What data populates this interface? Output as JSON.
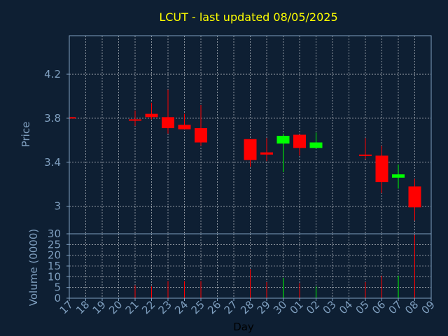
{
  "chart_data": {
    "type": "candlestick",
    "title": "LCUT - last updated 08/05/2025",
    "xlabel": "Day",
    "price_panel": {
      "ylabel": "Price",
      "ylim": [
        2.75,
        4.55
      ],
      "yticks": [
        3,
        3.4,
        3.8,
        4.2
      ],
      "ytick_labels": [
        "3",
        "3.4",
        "3.8",
        "4.2"
      ]
    },
    "volume_panel": {
      "ylabel": "Volume (0000)",
      "ylim": [
        0,
        30
      ],
      "yticks": [
        0,
        5,
        10,
        15,
        20,
        25,
        30
      ],
      "ytick_labels": [
        "0",
        "5",
        "10",
        "15",
        "20",
        "25",
        "30"
      ]
    },
    "x_tick_labels": [
      "17",
      "18",
      "19",
      "20",
      "21",
      "22",
      "23",
      "24",
      "25",
      "26",
      "27",
      "28",
      "29",
      "30",
      "01",
      "02",
      "03",
      "04",
      "05",
      "06",
      "07",
      "08",
      "09"
    ],
    "candles": [
      {
        "day": "17",
        "open": 3.81,
        "high": 3.81,
        "low": 3.8,
        "close": 3.8,
        "volume": 0.5
      },
      {
        "day": "21",
        "open": 3.79,
        "high": 3.87,
        "low": 3.73,
        "close": 3.78,
        "volume": 6
      },
      {
        "day": "22",
        "open": 3.84,
        "high": 3.94,
        "low": 3.79,
        "close": 3.81,
        "volume": 5.5
      },
      {
        "day": "23",
        "open": 3.81,
        "high": 4.06,
        "low": 3.66,
        "close": 3.71,
        "volume": 8
      },
      {
        "day": "24",
        "open": 3.74,
        "high": 3.84,
        "low": 3.7,
        "close": 3.7,
        "volume": 8
      },
      {
        "day": "25",
        "open": 3.71,
        "high": 3.92,
        "low": 3.55,
        "close": 3.58,
        "volume": 8
      },
      {
        "day": "28",
        "open": 3.61,
        "high": 3.61,
        "low": 3.36,
        "close": 3.42,
        "volume": 13.5
      },
      {
        "day": "29",
        "open": 3.49,
        "high": 3.62,
        "low": 3.41,
        "close": 3.47,
        "volume": 7.5
      },
      {
        "day": "30",
        "open": 3.57,
        "high": 3.66,
        "low": 3.31,
        "close": 3.64,
        "volume": 9.5
      },
      {
        "day": "01",
        "open": 3.65,
        "high": 3.65,
        "low": 3.46,
        "close": 3.53,
        "volume": 7
      },
      {
        "day": "02",
        "open": 3.53,
        "high": 3.67,
        "low": 3.53,
        "close": 3.58,
        "volume": 5.5
      },
      {
        "day": "05",
        "open": 3.47,
        "high": 3.62,
        "low": 3.43,
        "close": 3.46,
        "volume": 7.5
      },
      {
        "day": "06",
        "open": 3.46,
        "high": 3.55,
        "low": 3.12,
        "close": 3.22,
        "volume": 10.5
      },
      {
        "day": "07",
        "open": 3.26,
        "high": 3.38,
        "low": 3.16,
        "close": 3.29,
        "volume": 10.5
      },
      {
        "day": "08",
        "open": 3.18,
        "high": 3.25,
        "low": 2.87,
        "close": 2.99,
        "volume": 29.5
      }
    ],
    "colors": {
      "background": "#0e1f33",
      "up": "#00ff00",
      "down": "#ff0000",
      "title": "#ffff00",
      "axis": "#7f9fbf",
      "grid": "#ffffff",
      "xlabel": "#000000"
    },
    "grid": true
  }
}
